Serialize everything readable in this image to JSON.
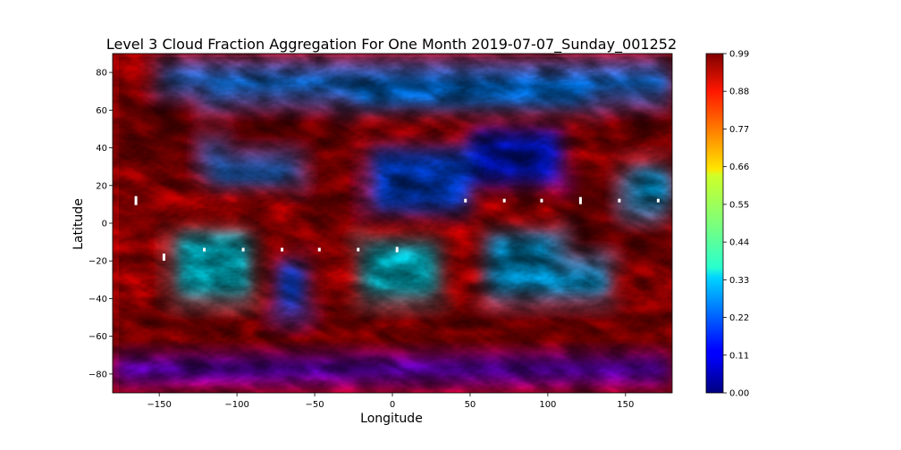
{
  "chart_data": {
    "type": "heatmap",
    "title": "Level 3 Cloud Fraction Aggregation For One Month 2019-07-07_Sunday_001252",
    "xlabel": "Longitude",
    "ylabel": "Latitude",
    "xlim": [
      -180,
      180
    ],
    "ylim": [
      -90,
      90
    ],
    "x_ticks": [
      -150,
      -100,
      -50,
      0,
      50,
      100,
      150
    ],
    "x_tick_labels": [
      "−150",
      "−100",
      "−50",
      "0",
      "50",
      "100",
      "150"
    ],
    "y_ticks": [
      -80,
      -60,
      -40,
      -20,
      0,
      20,
      40,
      60,
      80
    ],
    "y_tick_labels": [
      "−80",
      "−60",
      "−40",
      "−20",
      "0",
      "20",
      "40",
      "60",
      "80"
    ],
    "colormap": "jet",
    "colorbar": {
      "range": [
        0.0,
        0.99
      ],
      "ticks": [
        0.0,
        0.11,
        0.22,
        0.33,
        0.44,
        0.55,
        0.66,
        0.77,
        0.88,
        0.99
      ],
      "tick_labels": [
        "0.00",
        "0.11",
        "0.22",
        "0.33",
        "0.44",
        "0.55",
        "0.66",
        "0.77",
        "0.88",
        "0.99"
      ]
    },
    "grid": false,
    "legend": "none",
    "field_regions": [
      {
        "lon": [
          -180,
          180
        ],
        "lat": [
          85,
          90
        ],
        "value": 0.92
      },
      {
        "lon": [
          -180,
          180
        ],
        "lat": [
          -90,
          -84
        ],
        "value": 0.85
      },
      {
        "lon": [
          -180,
          180
        ],
        "lat": [
          -84,
          -74
        ],
        "value": 0.12
      },
      {
        "lon": [
          -180,
          180
        ],
        "lat": [
          -74,
          -45
        ],
        "value": 0.95
      },
      {
        "lon": [
          -150,
          180
        ],
        "lat": [
          60,
          85
        ],
        "value": 0.25
      },
      {
        "lon": [
          -180,
          -120
        ],
        "lat": [
          25,
          70
        ],
        "value": 0.97
      },
      {
        "lon": [
          -120,
          -60
        ],
        "lat": [
          20,
          45
        ],
        "value": 0.25
      },
      {
        "lon": [
          -110,
          -30
        ],
        "lat": [
          35,
          65
        ],
        "value": 0.97
      },
      {
        "lon": [
          -60,
          -20
        ],
        "lat": [
          -10,
          30
        ],
        "value": 0.95
      },
      {
        "lon": [
          -15,
          50
        ],
        "lat": [
          5,
          40
        ],
        "value": 0.2
      },
      {
        "lon": [
          50,
          110
        ],
        "lat": [
          20,
          50
        ],
        "value": 0.15
      },
      {
        "lon": [
          60,
          140
        ],
        "lat": [
          -40,
          -5
        ],
        "value": 0.3
      },
      {
        "lon": [
          110,
          175
        ],
        "lat": [
          -20,
          25
        ],
        "value": 0.97
      },
      {
        "lon": [
          130,
          180
        ],
        "lat": [
          40,
          65
        ],
        "value": 0.96
      },
      {
        "lon": [
          -140,
          -90
        ],
        "lat": [
          -40,
          -5
        ],
        "value": 0.35
      },
      {
        "lon": [
          -75,
          -55
        ],
        "lat": [
          -50,
          -20
        ],
        "value": 0.2
      },
      {
        "lon": [
          -20,
          30
        ],
        "lat": [
          -40,
          -10
        ],
        "value": 0.35
      },
      {
        "lon": [
          150,
          180
        ],
        "lat": [
          5,
          30
        ],
        "value": 0.3
      },
      {
        "lon": [
          -180,
          -150
        ],
        "lat": [
          -40,
          0
        ],
        "value": 0.9
      }
    ]
  }
}
